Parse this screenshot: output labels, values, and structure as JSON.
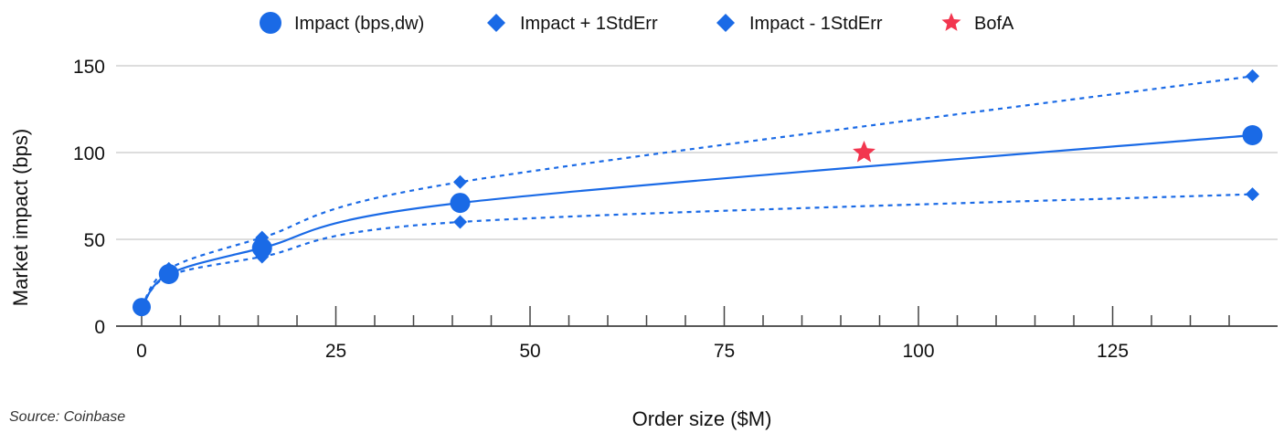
{
  "chart_data": {
    "type": "line",
    "title": "",
    "xlabel": "Order size ($M)",
    "ylabel": "Market impact (bps)",
    "xlim": [
      0,
      143
    ],
    "ylim": [
      0,
      150
    ],
    "xticks": [
      0,
      25,
      50,
      75,
      100,
      125
    ],
    "yticks": [
      0,
      50,
      100,
      150
    ],
    "grid": "horizontal",
    "legend_position": "top-center",
    "series": [
      {
        "name": "Impact (bps,dw)",
        "marker": "circle",
        "line": "solid",
        "color": "#1a6ae6",
        "points": [
          {
            "x": 0,
            "y": 11
          },
          {
            "x": 3.5,
            "y": 30
          },
          {
            "x": 15.5,
            "y": 45
          },
          {
            "x": 41,
            "y": 71
          },
          {
            "x": 143,
            "y": 110
          }
        ]
      },
      {
        "name": "Impact + 1StdErr",
        "marker": "diamond",
        "line": "dotted",
        "color": "#1a6ae6",
        "points": [
          {
            "x": 0,
            "y": 11
          },
          {
            "x": 3.5,
            "y": 33
          },
          {
            "x": 15.5,
            "y": 51
          },
          {
            "x": 41,
            "y": 83
          },
          {
            "x": 143,
            "y": 144
          }
        ]
      },
      {
        "name": "Impact - 1StdErr",
        "marker": "diamond",
        "line": "dotted",
        "color": "#1a6ae6",
        "points": [
          {
            "x": 0,
            "y": 11
          },
          {
            "x": 3.5,
            "y": 29
          },
          {
            "x": 15.5,
            "y": 40
          },
          {
            "x": 41,
            "y": 60
          },
          {
            "x": 143,
            "y": 76
          }
        ]
      },
      {
        "name": "BofA",
        "marker": "star",
        "line": "none",
        "color": "#f2364f",
        "points": [
          {
            "x": 93,
            "y": 100
          }
        ]
      }
    ]
  },
  "source_text": "Source: Coinbase"
}
